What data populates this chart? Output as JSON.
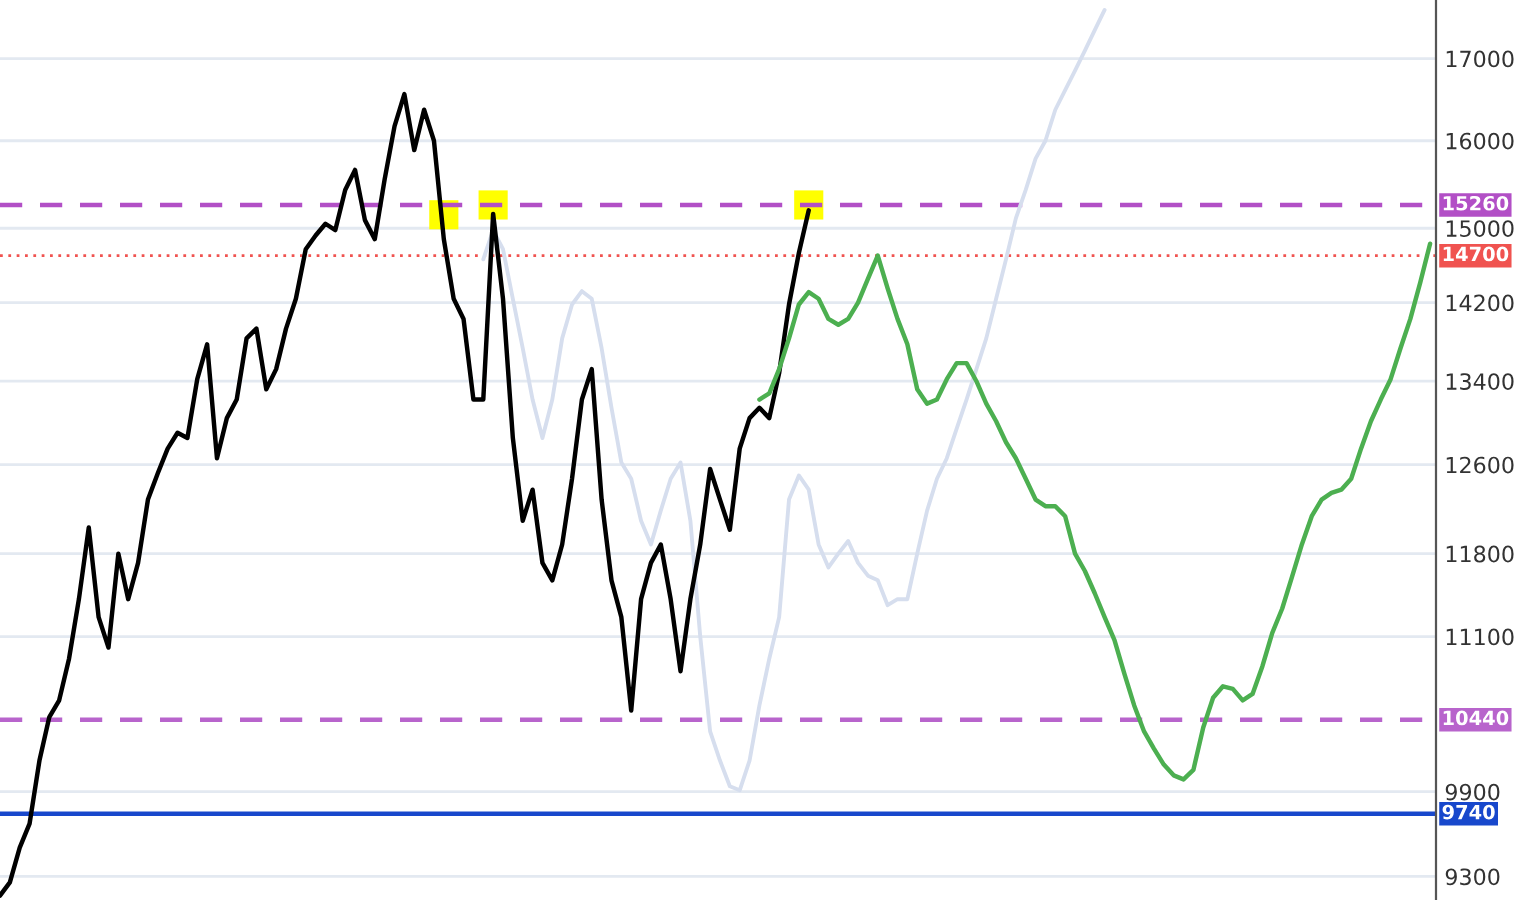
{
  "chart_data": {
    "type": "line",
    "log": "y",
    "grid": "y",
    "tick_labels": "y",
    "marker": "none",
    "legend": false,
    "categories": [
      null,
      null,
      null,
      null,
      null,
      null,
      null,
      null,
      null,
      null,
      null,
      null,
      null,
      null,
      null,
      null,
      null,
      null,
      null,
      null,
      null,
      null,
      null,
      null,
      null,
      null,
      null,
      null,
      null,
      null,
      null,
      null,
      null,
      null,
      null,
      null,
      null,
      null,
      null,
      null,
      null,
      null,
      null,
      null,
      null,
      null,
      null,
      null,
      null,
      null,
      null,
      null,
      null,
      null,
      null,
      null,
      null,
      null,
      null,
      null,
      null,
      null,
      null,
      null,
      null,
      null,
      null,
      null,
      null,
      null,
      null,
      null,
      null,
      null,
      null,
      null,
      null,
      null,
      null,
      null,
      null,
      null,
      null,
      null,
      null,
      null,
      null,
      null,
      null,
      null,
      null,
      null,
      null,
      null,
      null,
      null,
      null,
      null,
      null,
      null,
      null,
      null,
      null,
      null,
      null,
      null,
      null,
      null,
      null,
      null,
      null,
      null,
      null,
      null,
      null,
      null,
      null,
      null,
      null,
      null,
      null,
      null,
      null,
      null,
      null,
      null,
      null,
      null,
      null,
      null,
      null,
      null,
      null,
      null,
      null,
      null,
      null,
      null,
      null,
      null,
      null,
      null,
      null,
      null,
      null,
      null
    ],
    "ylim": [
      9140,
      17750
    ],
    "yticks": [
      17000,
      16000,
      15000,
      14200,
      13400,
      12600,
      11800,
      11100,
      9900,
      9300
    ],
    "series": [
      {
        "color": "#d6deee",
        "values": [
          null,
          null,
          null,
          null,
          null,
          null,
          null,
          null,
          null,
          null,
          null,
          null,
          null,
          null,
          null,
          null,
          null,
          null,
          null,
          null,
          null,
          null,
          null,
          null,
          null,
          null,
          null,
          null,
          null,
          null,
          null,
          null,
          null,
          null,
          null,
          null,
          null,
          null,
          null,
          null,
          null,
          null,
          null,
          null,
          null,
          null,
          null,
          null,
          null,
          14660,
          14980,
          14770,
          14240,
          13730,
          13220,
          12850,
          13220,
          13830,
          14180,
          14320,
          14240,
          13730,
          13140,
          12620,
          12470,
          12090,
          11880,
          12180,
          12470,
          12620,
          12090,
          11100,
          10350,
          10130,
          9940,
          9910,
          10130,
          10550,
          10920,
          11260,
          12280,
          12500,
          12370,
          11880,
          11680,
          11800,
          11910,
          11720,
          11610,
          11570,
          11360,
          11410,
          11410,
          11800,
          12180,
          12470,
          12660,
          12940,
          13220,
          13520,
          13830,
          14240,
          14660,
          15110,
          15430,
          15790,
          16000,
          16370,
          16610,
          16850,
          17100,
          17360,
          17620,
          null,
          null,
          null,
          null,
          null,
          null,
          null,
          null,
          null,
          null,
          null,
          null,
          null,
          null,
          null,
          null,
          null,
          null,
          null,
          null,
          null,
          null,
          null,
          null,
          null,
          null,
          null,
          null,
          null,
          null,
          null,
          null,
          null
        ]
      },
      {
        "color": "#000000",
        "values": [
          9170,
          9260,
          9500,
          9670,
          10130,
          10460,
          10590,
          10920,
          11410,
          12030,
          11260,
          11010,
          11800,
          11410,
          11720,
          12280,
          12520,
          12750,
          12900,
          12850,
          13420,
          13770,
          12660,
          13040,
          13220,
          13830,
          13930,
          13320,
          13520,
          13930,
          14240,
          14770,
          14920,
          15050,
          14980,
          15430,
          15660,
          15090,
          14880,
          15550,
          16170,
          16560,
          15890,
          16370,
          16000,
          14880,
          14240,
          14030,
          13220,
          13220,
          15160,
          14240,
          12850,
          12090,
          12370,
          11720,
          11570,
          11880,
          12470,
          13220,
          13520,
          12280,
          11570,
          11260,
          10510,
          11410,
          11720,
          11880,
          11410,
          10820,
          11410,
          11880,
          12560,
          12280,
          12010,
          12750,
          13040,
          13140,
          13040,
          13480,
          14180,
          14730,
          15200,
          null,
          null,
          null,
          null,
          null,
          null,
          null,
          null,
          null,
          null,
          null,
          null,
          null,
          null,
          null,
          null,
          null,
          null,
          null,
          null,
          null,
          null,
          null,
          null,
          null,
          null,
          null,
          null,
          null,
          null,
          null,
          null,
          null,
          null,
          null,
          null,
          null,
          null,
          null,
          null,
          null,
          null,
          null,
          null,
          null,
          null,
          null,
          null,
          null,
          null,
          null,
          null,
          null,
          null,
          null,
          null,
          null,
          null,
          null,
          null,
          null,
          null,
          null
        ]
      },
      {
        "color": "#4caf50",
        "values": [
          null,
          null,
          null,
          null,
          null,
          null,
          null,
          null,
          null,
          null,
          null,
          null,
          null,
          null,
          null,
          null,
          null,
          null,
          null,
          null,
          null,
          null,
          null,
          null,
          null,
          null,
          null,
          null,
          null,
          null,
          null,
          null,
          null,
          null,
          null,
          null,
          null,
          null,
          null,
          null,
          null,
          null,
          null,
          null,
          null,
          null,
          null,
          null,
          null,
          null,
          null,
          null,
          null,
          null,
          null,
          null,
          null,
          null,
          null,
          null,
          null,
          null,
          null,
          null,
          null,
          null,
          null,
          null,
          null,
          null,
          null,
          null,
          null,
          null,
          null,
          null,
          null,
          13220,
          13280,
          13520,
          13830,
          14180,
          14310,
          14240,
          14030,
          13970,
          14030,
          14200,
          14450,
          14700,
          14350,
          14030,
          13770,
          13320,
          13180,
          13220,
          13420,
          13580,
          13580,
          13400,
          13180,
          13010,
          12810,
          12660,
          12470,
          12280,
          12220,
          12220,
          12130,
          11800,
          11650,
          11460,
          11260,
          11070,
          10800,
          10550,
          10350,
          10220,
          10100,
          10020,
          9990,
          10060,
          10380,
          10610,
          10700,
          10680,
          10590,
          10640,
          10860,
          11130,
          11330,
          11600,
          11880,
          12130,
          12280,
          12340,
          12370,
          12470,
          12750,
          13010,
          13220,
          13420,
          13730,
          14030,
          14410,
          14830
        ]
      },
      {
        "type": "scatter",
        "marker": "square",
        "color": "#ffff00",
        "values": [
          null,
          null,
          null,
          null,
          null,
          null,
          null,
          null,
          null,
          null,
          null,
          null,
          null,
          null,
          null,
          null,
          null,
          null,
          null,
          null,
          null,
          null,
          null,
          null,
          null,
          null,
          null,
          null,
          null,
          null,
          null,
          null,
          null,
          null,
          null,
          null,
          null,
          null,
          null,
          null,
          null,
          null,
          null,
          null,
          null,
          15150,
          null,
          null,
          null,
          null,
          15260,
          null,
          null,
          null,
          null,
          null,
          null,
          null,
          null,
          null,
          null,
          null,
          null,
          null,
          null,
          null,
          null,
          null,
          null,
          null,
          null,
          null,
          null,
          null,
          null,
          null,
          null,
          null,
          null,
          null,
          null,
          null,
          15260,
          null,
          null,
          null,
          null,
          null,
          null,
          null,
          null,
          null,
          null,
          null,
          null,
          null,
          null,
          null,
          null,
          null,
          null,
          null,
          null,
          null,
          null,
          null,
          null,
          null,
          null,
          null,
          null,
          null,
          null,
          null,
          null,
          null,
          null,
          null,
          null,
          null,
          null,
          null,
          null,
          null,
          null,
          null,
          null,
          null,
          null,
          null,
          null,
          null,
          null,
          null,
          null,
          null,
          null,
          null,
          null,
          null,
          null,
          null,
          null,
          null,
          null,
          null
        ]
      }
    ],
    "ref_lines": [
      {
        "axis": "y",
        "value": 15260,
        "label": "15260",
        "color": "#b24fc6",
        "line_style": "dashed"
      },
      {
        "axis": "y",
        "value": 14700,
        "label": "14700",
        "color": "#f05350",
        "line_style": "dotted"
      },
      {
        "axis": "y",
        "value": 10440,
        "label": "10440",
        "color": "#b864cc",
        "line_style": "dashed"
      },
      {
        "axis": "y",
        "value": 9740,
        "label": "9740",
        "color": "#1848cc",
        "line_style": "solid"
      }
    ]
  }
}
